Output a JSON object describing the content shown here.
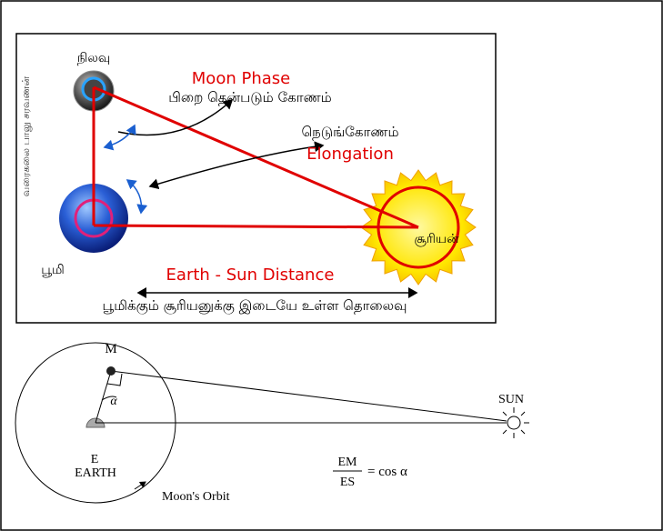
{
  "top_diagram": {
    "credit": "வரைகலை பாலு சரவணன்",
    "moon_label": "நிலவு",
    "moon_phase": "Moon Phase",
    "moon_phase_tamil": "பிறை தென்படும் கோணம்",
    "elongation_tamil": "நெடுங்கோணம்",
    "elongation": "Elongation",
    "sun_label": "சூரியன்",
    "earth_label": "பூமி",
    "distance": "Earth - Sun Distance",
    "distance_tamil": "பூமிக்கும் சூரியனுக்கு இடையே உள்ள தொலைவு"
  },
  "bottom_diagram": {
    "moon_label": "M",
    "sun_label": "SUN",
    "angle_label": "α",
    "earth_point": "E",
    "earth_label": "EARTH",
    "formula": {
      "numerator": "EM",
      "denominator": "ES",
      "rhs": "= cos α"
    },
    "orbit_label": "Moon's Orbit"
  }
}
